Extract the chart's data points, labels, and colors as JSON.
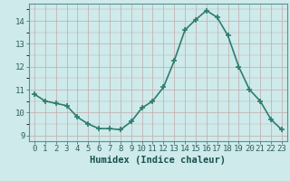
{
  "x": [
    0,
    1,
    2,
    3,
    4,
    5,
    6,
    7,
    8,
    9,
    10,
    11,
    12,
    13,
    14,
    15,
    16,
    17,
    18,
    19,
    20,
    21,
    22,
    23
  ],
  "y": [
    10.8,
    10.5,
    10.4,
    10.3,
    9.8,
    9.5,
    9.3,
    9.3,
    9.25,
    9.6,
    10.2,
    10.5,
    11.1,
    12.25,
    13.6,
    14.05,
    14.45,
    14.15,
    13.35,
    12.0,
    11.0,
    10.5,
    9.7,
    9.25
  ],
  "line_color": "#2e7d6e",
  "marker": "+",
  "marker_size": 4,
  "bg_color": "#ceeaea",
  "grid_color": "#c0aaaa",
  "xlabel": "Humidex (Indice chaleur)",
  "xlim": [
    -0.5,
    23.5
  ],
  "ylim": [
    8.75,
    14.75
  ],
  "yticks": [
    9,
    10,
    11,
    12,
    13,
    14
  ],
  "xticks": [
    0,
    1,
    2,
    3,
    4,
    5,
    6,
    7,
    8,
    9,
    10,
    11,
    12,
    13,
    14,
    15,
    16,
    17,
    18,
    19,
    20,
    21,
    22,
    23
  ],
  "xlabel_fontsize": 7.5,
  "tick_fontsize": 6.5,
  "line_width": 1.2
}
